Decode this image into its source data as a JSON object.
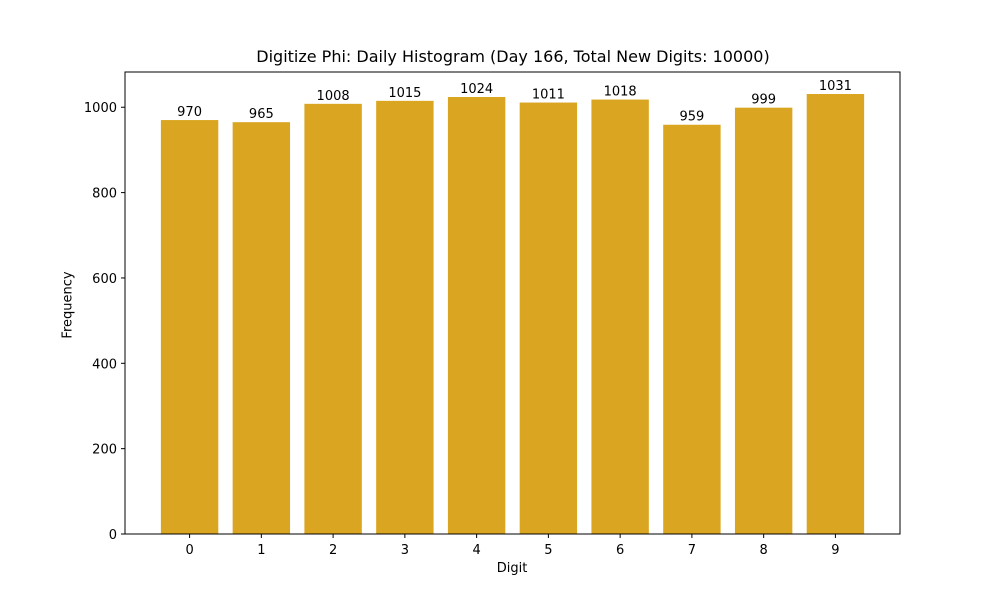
{
  "chart_data": {
    "type": "bar",
    "title": "Digitize Phi: Daily Histogram (Day 166, Total New Digits: 10000)",
    "xlabel": "Digit",
    "ylabel": "Frequency",
    "categories": [
      "0",
      "1",
      "2",
      "3",
      "4",
      "5",
      "6",
      "7",
      "8",
      "9"
    ],
    "values": [
      970,
      965,
      1008,
      1015,
      1024,
      1011,
      1018,
      959,
      999,
      1031
    ],
    "data_labels": [
      "970",
      "965",
      "1008",
      "1015",
      "1024",
      "1011",
      "1018",
      "959",
      "999",
      "1031"
    ],
    "yticks": [
      0,
      200,
      400,
      600,
      800,
      1000
    ],
    "ylim": [
      0,
      1082.6
    ],
    "xlim": [
      -0.9,
      9.9
    ],
    "bar_color": "#DAA520",
    "grid": false,
    "legend": null
  }
}
